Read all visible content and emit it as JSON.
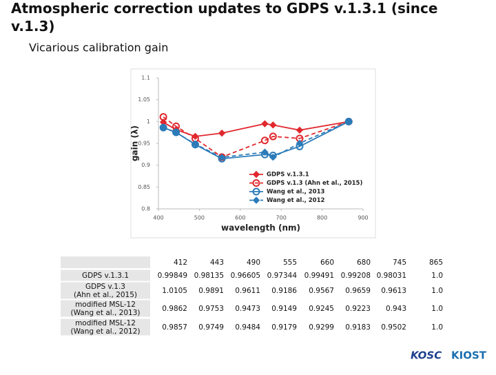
{
  "title": "Atmospheric correction updates to GDPS v.1.3.1 (since v.1.3)",
  "subtitle": "Vicarious calibration gain",
  "chart_data": {
    "type": "line",
    "xlabel": "wavelength (nm)",
    "ylabel": "gain (λ)",
    "x": [
      412,
      443,
      490,
      555,
      660,
      680,
      745,
      865
    ],
    "xlim": [
      400,
      900
    ],
    "xticks": [
      400,
      500,
      600,
      700,
      800,
      900
    ],
    "ylim": [
      0.8,
      1.1
    ],
    "yticks": [
      0.8,
      0.85,
      0.9,
      0.95,
      1,
      1.05,
      1.1
    ],
    "legend": "lower-right",
    "series": [
      {
        "name": "GDPS v.1.3.1",
        "color": "#e0282e",
        "marker": "diamond",
        "dashed": false,
        "values": [
          0.99849,
          0.98135,
          0.96605,
          0.97344,
          0.99491,
          0.99208,
          0.98031,
          1.0
        ]
      },
      {
        "name": "GDPS v.1.3 (Ahn et al., 2015)",
        "color": "#e0282e",
        "marker": "circle",
        "dashed": true,
        "values": [
          1.0105,
          0.9891,
          0.9611,
          0.9186,
          0.9567,
          0.9659,
          0.9613,
          1.0
        ]
      },
      {
        "name": "Wang et al., 2013",
        "color": "#2b7bb9",
        "marker": "circle",
        "dashed": false,
        "values": [
          0.9862,
          0.9753,
          0.9473,
          0.9149,
          0.9245,
          0.9223,
          0.943,
          1.0
        ]
      },
      {
        "name": "Wang et al., 2012",
        "color": "#2b7bb9",
        "marker": "diamond",
        "dashed": true,
        "values": [
          0.9857,
          0.9749,
          0.9484,
          0.9179,
          0.9299,
          0.9183,
          0.9502,
          1.0
        ]
      }
    ]
  },
  "table": {
    "header": [
      "412",
      "443",
      "490",
      "555",
      "660",
      "680",
      "745",
      "865"
    ],
    "rows": [
      {
        "label": [
          "GDPS v.1.3.1"
        ],
        "cells": [
          "0.99849",
          "0.98135",
          "0.96605",
          "0.97344",
          "0.99491",
          "0.99208",
          "0.98031",
          "1.0"
        ]
      },
      {
        "label": [
          "GDPS v.1.3",
          "(Ahn et al., 2015)"
        ],
        "cells": [
          "1.0105",
          "0.9891",
          "0.9611",
          "0.9186",
          "0.9567",
          "0.9659",
          "0.9613",
          "1.0"
        ]
      },
      {
        "label": [
          "modified MSL-12",
          "(Wang et al., 2013)"
        ],
        "cells": [
          "0.9862",
          "0.9753",
          "0.9473",
          "0.9149",
          "0.9245",
          "0.9223",
          "0.943",
          "1.0"
        ]
      },
      {
        "label": [
          "modified MSL-12",
          "(Wang et al., 2012)"
        ],
        "cells": [
          "0.9857",
          "0.9749",
          "0.9484",
          "0.9179",
          "0.9299",
          "0.9183",
          "0.9502",
          "1.0"
        ]
      }
    ]
  },
  "logos": [
    "KOSC",
    "KIOST"
  ]
}
